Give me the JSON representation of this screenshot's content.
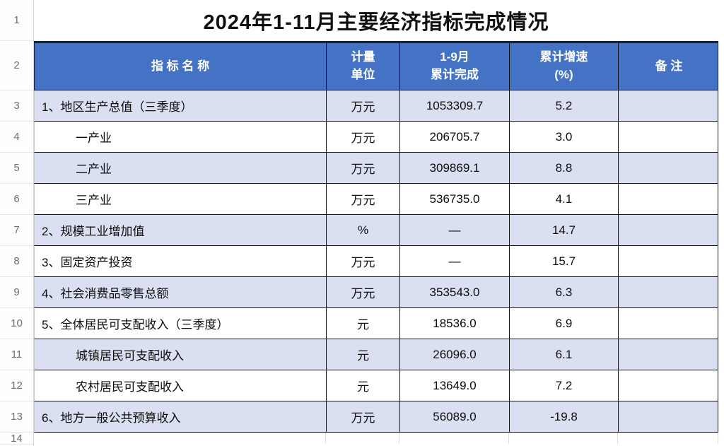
{
  "title": "2024年1-11月主要经济指标完成情况",
  "colors": {
    "header_bg": "#4472C4",
    "band_bg": "#DBDFF2",
    "header_top_border": "#16233E",
    "grid_border": "#161616"
  },
  "gutter": {
    "numbers": [
      "1",
      "2",
      "3",
      "4",
      "5",
      "6",
      "7",
      "8",
      "9",
      "10",
      "11",
      "12",
      "13",
      "14"
    ]
  },
  "table": {
    "headers": [
      {
        "label": "指  标  名  称"
      },
      {
        "label": "计量\n单位"
      },
      {
        "label": "1-9月\n累计完成"
      },
      {
        "label": "累计增速\n(%)"
      },
      {
        "label": "备  注"
      }
    ],
    "rows": [
      {
        "num": "3",
        "name": "1、地区生产总值（三季度）",
        "indent": false,
        "unit": "万元",
        "value": "1053309.7",
        "growth": "5.2",
        "remark": ""
      },
      {
        "num": "4",
        "name": "一产业",
        "indent": true,
        "unit": "万元",
        "value": "206705.7",
        "growth": "3.0",
        "remark": ""
      },
      {
        "num": "5",
        "name": "二产业",
        "indent": true,
        "unit": "万元",
        "value": "309869.1",
        "growth": "8.8",
        "remark": ""
      },
      {
        "num": "6",
        "name": "三产业",
        "indent": true,
        "unit": "万元",
        "value": "536735.0",
        "growth": "4.1",
        "remark": ""
      },
      {
        "num": "7",
        "name": "2、规模工业增加值",
        "indent": false,
        "unit": "%",
        "value": "—",
        "growth": "14.7",
        "remark": ""
      },
      {
        "num": "8",
        "name": "3、固定资产投资",
        "indent": false,
        "unit": "万元",
        "value": "—",
        "growth": "15.7",
        "remark": ""
      },
      {
        "num": "9",
        "name": "4、社会消费品零售总额",
        "indent": false,
        "unit": "万元",
        "value": "353543.0",
        "growth": "6.3",
        "remark": ""
      },
      {
        "num": "10",
        "name": "5、全体居民可支配收入（三季度）",
        "indent": false,
        "unit": "元",
        "value": "18536.0",
        "growth": "6.9",
        "remark": ""
      },
      {
        "num": "11",
        "name": "城镇居民可支配收入",
        "indent": true,
        "unit": "元",
        "value": "26096.0",
        "growth": "6.1",
        "remark": ""
      },
      {
        "num": "12",
        "name": "农村居民可支配收入",
        "indent": true,
        "unit": "元",
        "value": "13649.0",
        "growth": "7.2",
        "remark": ""
      },
      {
        "num": "13",
        "name": "6、地方一般公共预算收入",
        "indent": false,
        "unit": "万元",
        "value": "56089.0",
        "growth": "-19.8",
        "remark": ""
      }
    ]
  }
}
